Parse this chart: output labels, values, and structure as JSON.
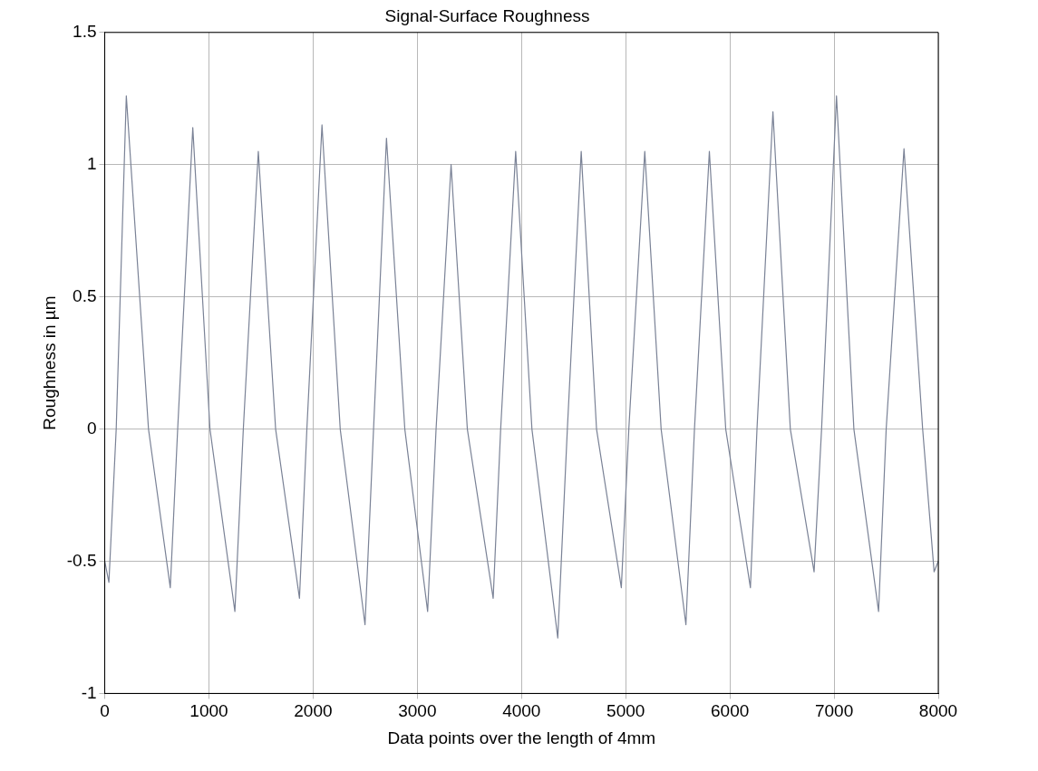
{
  "chart_data": {
    "type": "line",
    "title": "Signal-Surface Roughness",
    "xlabel": "Data points over the length of 4mm",
    "ylabel": "Roughness in µm",
    "x": [
      0,
      40,
      110,
      207,
      420,
      629,
      700,
      845,
      1010,
      1249,
      1330,
      1474,
      1640,
      1869,
      1940,
      2085,
      2260,
      2498,
      2580,
      2704,
      2880,
      3099,
      3180,
      3324,
      3480,
      3728,
      3800,
      3944,
      4100,
      4348,
      4440,
      4573,
      4720,
      4958,
      5030,
      5183,
      5340,
      5578,
      5660,
      5803,
      5960,
      6197,
      6260,
      6413,
      6580,
      6808,
      6880,
      7023,
      7190,
      7427,
      7500,
      7671,
      7850,
      7960,
      8000
    ],
    "series": [
      {
        "color": "#7a8296",
        "values": [
          -0.5,
          -0.58,
          0,
          1.26,
          0,
          -0.6,
          0,
          1.14,
          0,
          -0.69,
          0,
          1.05,
          0,
          -0.64,
          0,
          1.15,
          0,
          -0.74,
          0,
          1.1,
          0,
          -0.69,
          0,
          1.0,
          0,
          -0.64,
          0,
          1.05,
          0,
          -0.79,
          0,
          1.05,
          0,
          -0.6,
          0,
          1.05,
          0,
          -0.74,
          0,
          1.05,
          0,
          -0.6,
          0,
          1.2,
          0,
          -0.54,
          0,
          1.26,
          0,
          -0.69,
          0,
          1.06,
          0,
          -0.54,
          -0.5
        ]
      }
    ],
    "xlim": [
      0,
      8000
    ],
    "xticks": [
      0,
      1000,
      2000,
      3000,
      4000,
      5000,
      6000,
      7000,
      8000
    ],
    "ylim": [
      -1,
      1.5
    ],
    "yticks": [
      -1,
      -0.5,
      0,
      0.5,
      1,
      1.5
    ],
    "grid": true,
    "legend": false,
    "marker": "none",
    "line_style": "solid"
  }
}
